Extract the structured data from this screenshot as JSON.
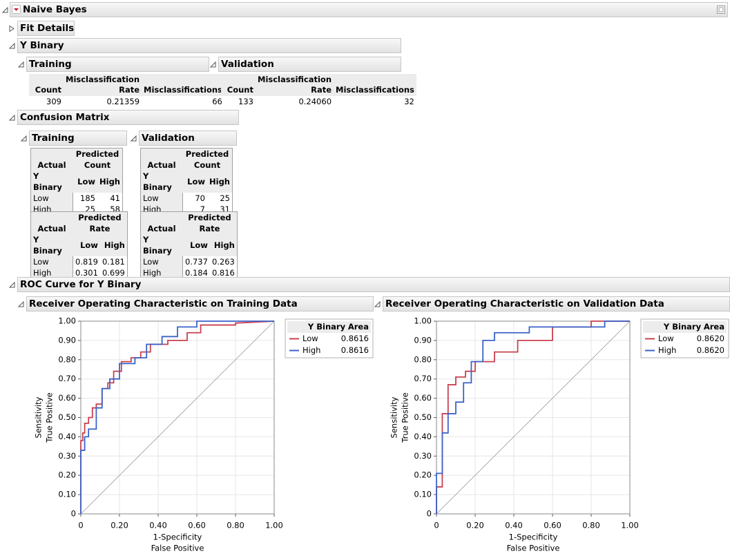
{
  "title": "Naive Bayes",
  "fit_details": "Fit Details",
  "y_binary": {
    "title": "Y Binary",
    "training": {
      "title": "Training",
      "headers": [
        "Count",
        "Misclassification Rate",
        "Misclassifications"
      ],
      "row": [
        "309",
        "0.21359",
        "66"
      ]
    },
    "validation": {
      "title": "Validation",
      "headers": [
        "Count",
        "Misclassification Rate",
        "Misclassifications"
      ],
      "row": [
        "133",
        "0.24060",
        "32"
      ]
    }
  },
  "confusion": {
    "title": "Confusion Matrix",
    "training": {
      "title": "Training",
      "count": {
        "actual": "Actual",
        "predicted": "Predicted",
        "measure": "Count",
        "group": "Y Binary",
        "cols": [
          "Low",
          "High"
        ],
        "rows": [
          [
            "Low",
            "185",
            "41"
          ],
          [
            "High",
            "25",
            "58"
          ]
        ]
      },
      "rate": {
        "actual": "Actual",
        "predicted": "Predicted",
        "measure": "Rate",
        "group": "Y Binary",
        "cols": [
          "Low",
          "High"
        ],
        "rows": [
          [
            "Low",
            "0.819",
            "0.181"
          ],
          [
            "High",
            "0.301",
            "0.699"
          ]
        ]
      }
    },
    "validation": {
      "title": "Validation",
      "count": {
        "actual": "Actual",
        "predicted": "Predicted",
        "measure": "Count",
        "group": "Y Binary",
        "cols": [
          "Low",
          "High"
        ],
        "rows": [
          [
            "Low",
            "70",
            "25"
          ],
          [
            "High",
            "7",
            "31"
          ]
        ]
      },
      "rate": {
        "actual": "Actual",
        "predicted": "Predicted",
        "measure": "Rate",
        "group": "Y Binary",
        "cols": [
          "Low",
          "High"
        ],
        "rows": [
          [
            "Low",
            "0.737",
            "0.263"
          ],
          [
            "High",
            "0.184",
            "0.816"
          ]
        ]
      }
    }
  },
  "roc_title": "ROC Curve for Y Binary",
  "chart_data": [
    {
      "type": "line",
      "title": "Receiver Operating Characteristic on Training Data",
      "x_label": [
        "1-Specificity",
        "False Positive"
      ],
      "y_label": [
        "Sensitivity",
        "True Positive"
      ],
      "xlim": [
        0,
        1
      ],
      "ylim": [
        0,
        1
      ],
      "grid": true,
      "xticks": [
        0,
        {
          "value": 0.2,
          "label": "0.20"
        },
        {
          "value": 0.4,
          "label": "0.40"
        },
        {
          "value": 0.6,
          "label": "0.60"
        },
        {
          "value": 0.8,
          "label": "0.80"
        },
        {
          "value": 1,
          "label": "1.00"
        }
      ],
      "yticks": [
        0,
        {
          "value": 0.1,
          "label": "0.10"
        },
        {
          "value": 0.2,
          "label": "0.20"
        },
        {
          "value": 0.3,
          "label": "0.30"
        },
        {
          "value": 0.4,
          "label": "0.40"
        },
        {
          "value": 0.5,
          "label": "0.50"
        },
        {
          "value": 0.6,
          "label": "0.60"
        },
        {
          "value": 0.7,
          "label": "0.70"
        },
        {
          "value": 0.8,
          "label": "0.80"
        },
        {
          "value": 0.9,
          "label": "0.90"
        },
        {
          "value": 1,
          "label": "1.00"
        }
      ],
      "legend_header": [
        "Y Binary",
        "Area"
      ],
      "series": [
        {
          "name": "Low",
          "color": "#c8404f",
          "area": "0.8616",
          "x": [
            0,
            0,
            0.01,
            0.01,
            0.02,
            0.02,
            0.04,
            0.04,
            0.06,
            0.06,
            0.08,
            0.08,
            0.11,
            0.11,
            0.14,
            0.14,
            0.17,
            0.17,
            0.21,
            0.21,
            0.26,
            0.26,
            0.31,
            0.31,
            0.36,
            0.36,
            0.45,
            0.45,
            0.55,
            0.55,
            0.62,
            0.62,
            0.8,
            0.8,
            1
          ],
          "values": [
            0,
            0.38,
            0.38,
            0.42,
            0.42,
            0.47,
            0.47,
            0.5,
            0.5,
            0.55,
            0.55,
            0.57,
            0.57,
            0.65,
            0.65,
            0.68,
            0.68,
            0.74,
            0.74,
            0.79,
            0.79,
            0.81,
            0.81,
            0.84,
            0.84,
            0.88,
            0.88,
            0.9,
            0.9,
            0.94,
            0.94,
            0.98,
            0.98,
            0.99,
            1
          ]
        },
        {
          "name": "High",
          "color": "#3a62c9",
          "area": "0.8616",
          "x": [
            0,
            0,
            0.02,
            0.02,
            0.04,
            0.04,
            0.08,
            0.08,
            0.11,
            0.11,
            0.15,
            0.15,
            0.2,
            0.2,
            0.28,
            0.28,
            0.34,
            0.34,
            0.42,
            0.42,
            0.5,
            0.5,
            0.6,
            0.6,
            1
          ],
          "values": [
            0,
            0.33,
            0.33,
            0.4,
            0.4,
            0.44,
            0.44,
            0.55,
            0.55,
            0.65,
            0.65,
            0.7,
            0.7,
            0.78,
            0.78,
            0.81,
            0.81,
            0.88,
            0.88,
            0.92,
            0.92,
            0.97,
            0.97,
            1,
            1
          ]
        }
      ]
    },
    {
      "type": "line",
      "title": "Receiver Operating Characteristic on Validation Data",
      "x_label": [
        "1-Specificity",
        "False Positive"
      ],
      "y_label": [
        "Sensitivity",
        "True Positive"
      ],
      "xlim": [
        0,
        1
      ],
      "ylim": [
        0,
        1
      ],
      "grid": true,
      "xticks": [
        0,
        {
          "value": 0.2,
          "label": "0.20"
        },
        {
          "value": 0.4,
          "label": "0.40"
        },
        {
          "value": 0.6,
          "label": "0.60"
        },
        {
          "value": 0.8,
          "label": "0.80"
        },
        {
          "value": 1,
          "label": "1.00"
        }
      ],
      "yticks": [
        0,
        {
          "value": 0.1,
          "label": "0.10"
        },
        {
          "value": 0.2,
          "label": "0.20"
        },
        {
          "value": 0.3,
          "label": "0.30"
        },
        {
          "value": 0.4,
          "label": "0.40"
        },
        {
          "value": 0.5,
          "label": "0.50"
        },
        {
          "value": 0.6,
          "label": "0.60"
        },
        {
          "value": 0.7,
          "label": "0.70"
        },
        {
          "value": 0.8,
          "label": "0.80"
        },
        {
          "value": 0.9,
          "label": "0.90"
        },
        {
          "value": 1,
          "label": "1.00"
        }
      ],
      "legend_header": [
        "Y Binary",
        "Area"
      ],
      "series": [
        {
          "name": "Low",
          "color": "#c8404f",
          "area": "0.8620",
          "x": [
            0,
            0,
            0.03,
            0.03,
            0.06,
            0.06,
            0.1,
            0.1,
            0.15,
            0.15,
            0.2,
            0.2,
            0.3,
            0.3,
            0.42,
            0.42,
            0.6,
            0.6,
            0.8,
            0.8,
            1
          ],
          "values": [
            0,
            0.14,
            0.14,
            0.52,
            0.52,
            0.67,
            0.67,
            0.71,
            0.71,
            0.74,
            0.74,
            0.79,
            0.79,
            0.84,
            0.84,
            0.9,
            0.9,
            0.97,
            0.97,
            1,
            1
          ]
        },
        {
          "name": "High",
          "color": "#3a62c9",
          "area": "0.8620",
          "x": [
            0,
            0,
            0.03,
            0.03,
            0.06,
            0.06,
            0.1,
            0.1,
            0.14,
            0.14,
            0.18,
            0.18,
            0.24,
            0.24,
            0.3,
            0.3,
            0.48,
            0.48,
            0.87,
            0.87,
            1
          ],
          "values": [
            0,
            0.21,
            0.21,
            0.42,
            0.42,
            0.52,
            0.52,
            0.58,
            0.58,
            0.68,
            0.68,
            0.79,
            0.79,
            0.9,
            0.9,
            0.94,
            0.94,
            0.97,
            0.97,
            1,
            1
          ]
        }
      ]
    }
  ]
}
